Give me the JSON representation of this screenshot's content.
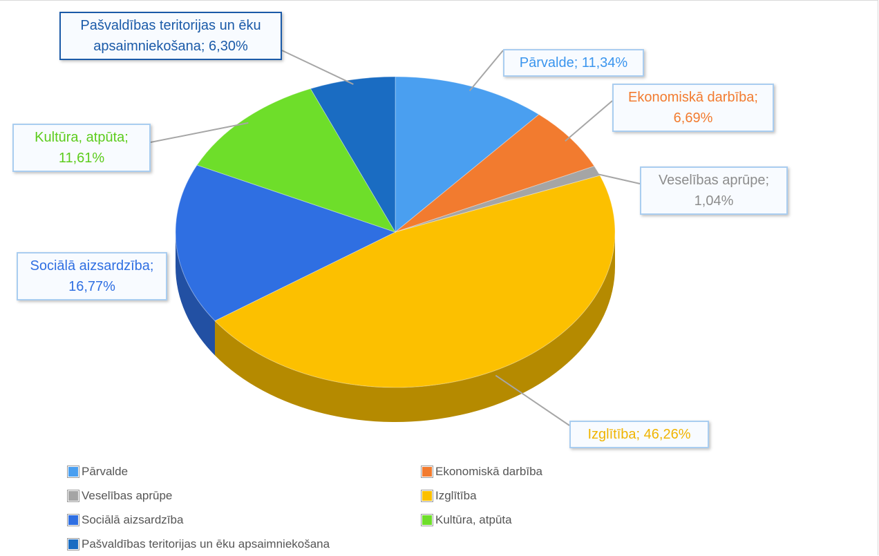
{
  "chart_data": {
    "type": "pie",
    "categories": [
      "Pārvalde",
      "Ekonomiskā darbība",
      "Veselības aprūpe",
      "Izglītība",
      "Sociālā aizsardzība",
      "Kultūra, atpūta",
      "Pašvaldības teritorijas un ēku apsaimniekošana"
    ],
    "values": [
      11.34,
      6.69,
      1.04,
      46.26,
      16.77,
      11.61,
      6.3
    ],
    "value_labels": [
      "Pārvalde; 11,34%",
      "Ekonomiskā darbība; 6,69%",
      "Veselības aprūpe; 1,04%",
      "Izglītība; 46,26%",
      "Sociālā aizsardzība; 16,77%",
      "Kultūra, atpūta; 11,61%",
      "Pašvaldības teritorijas un ēku apsaimniekošana; 6,30%"
    ],
    "colors": [
      "#4a9ff0",
      "#f27b2f",
      "#a5a5a5",
      "#fcc000",
      "#2f6fe2",
      "#6ede2a",
      "#1a6cc2"
    ],
    "legend": "bottom"
  }
}
